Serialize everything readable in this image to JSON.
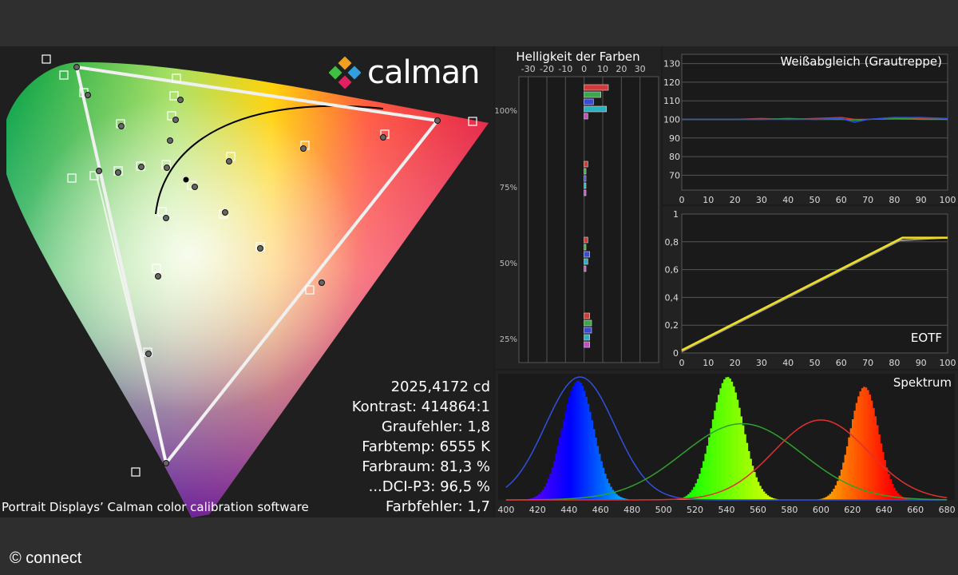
{
  "logo": {
    "text": "calman"
  },
  "stats": {
    "luminance": "2025,4172 cd",
    "contrast": "Kontrast: 414864:1",
    "gray_error": "Graufehler: 1,8",
    "color_temp": "Farbtemp: 6555 K",
    "gamut": "Farbraum: 81,3 %",
    "dci_p3": "...DCI-P3: 96,5 %",
    "color_error": "Farbfehler: 1,7"
  },
  "caption": "Portrait Displays’ Calman color calibration software",
  "credit": "© connect",
  "chart_data": [
    {
      "type": "scatter",
      "title": "",
      "description_key": "cie",
      "targets_triangle": [
        [
          0.68,
          0.32
        ],
        [
          0.265,
          0.69
        ],
        [
          0.15,
          0.06
        ]
      ],
      "measured_triangle": [
        [
          0.665,
          0.32
        ],
        [
          0.27,
          0.68
        ],
        [
          0.155,
          0.065
        ]
      ]
    },
    {
      "type": "bar",
      "title": "Helligkeit der Farben",
      "xticks": [
        "-30",
        "-20",
        "-10",
        "0",
        "10",
        "20",
        "30"
      ],
      "xlim": [
        -35,
        40
      ],
      "yticks": [
        "100%",
        "75%",
        "50%",
        "25%"
      ],
      "groups": [
        {
          "level": "100%",
          "values": [
            13,
            9,
            5,
            12,
            2
          ]
        },
        {
          "level": "75%",
          "values": [
            2,
            1,
            1,
            1,
            1
          ]
        },
        {
          "level": "50%",
          "values": [
            2,
            1,
            3,
            2,
            1
          ]
        },
        {
          "level": "25%",
          "values": [
            3,
            4,
            4,
            3,
            3
          ]
        }
      ],
      "colors": [
        "#d23a3a",
        "#3aa84a",
        "#3a4ad2",
        "#2ab0c0",
        "#c050c0"
      ]
    },
    {
      "type": "line",
      "title": "Weißabgleich (Grautreppe)",
      "xticks": [
        0,
        10,
        20,
        30,
        40,
        50,
        60,
        70,
        80,
        90,
        100
      ],
      "yticks": [
        70,
        80,
        90,
        100,
        110,
        120,
        130
      ],
      "ylim": [
        62,
        135
      ],
      "x": [
        0,
        10,
        20,
        30,
        40,
        50,
        60,
        65,
        70,
        80,
        90,
        100
      ],
      "series": [
        {
          "color": "#e03030",
          "values": [
            100,
            100,
            100,
            100.5,
            100,
            100.5,
            101,
            100,
            100,
            101,
            100.5,
            100
          ]
        },
        {
          "color": "#30a030",
          "values": [
            100,
            100,
            100,
            100,
            100.5,
            100,
            100,
            99.5,
            100,
            100.5,
            100,
            100
          ]
        },
        {
          "color": "#3050e0",
          "values": [
            100,
            100,
            100,
            100,
            100,
            100,
            100.5,
            98.5,
            100,
            101,
            101,
            100.5
          ]
        }
      ]
    },
    {
      "type": "line",
      "title": "EOTF",
      "xticks": [
        0,
        10,
        20,
        30,
        40,
        50,
        60,
        70,
        80,
        90,
        100
      ],
      "yticks": [
        "0",
        "0,2",
        "0,4",
        "0,6",
        "0,8",
        "1"
      ],
      "ylim": [
        0,
        1
      ],
      "target": {
        "color": "#999999",
        "x": [
          0,
          82,
          100
        ],
        "y": [
          0.01,
          0.81,
          0.83
        ]
      },
      "measured": {
        "color": "#f0e020",
        "x": [
          0,
          83,
          100
        ],
        "y": [
          0.02,
          0.83,
          0.83
        ]
      }
    },
    {
      "type": "area",
      "title": "Spektrum",
      "xticks": [
        400,
        420,
        440,
        460,
        480,
        500,
        520,
        540,
        560,
        580,
        600,
        620,
        640,
        660,
        680
      ],
      "xlim": [
        395,
        685
      ],
      "peaks": [
        {
          "center": 445,
          "width": 10,
          "height": 0.97
        },
        {
          "center": 540,
          "width": 10,
          "height": 1.0
        },
        {
          "center": 627,
          "width": 9,
          "height": 0.92
        }
      ],
      "reference_curves": [
        {
          "color": "#3050e0",
          "center": 447,
          "width": 22,
          "height": 1.0
        },
        {
          "color": "#30a030",
          "center": 550,
          "width": 38,
          "height": 0.62
        },
        {
          "color": "#e03030",
          "center": 600,
          "width": 30,
          "height": 0.65
        }
      ]
    }
  ]
}
